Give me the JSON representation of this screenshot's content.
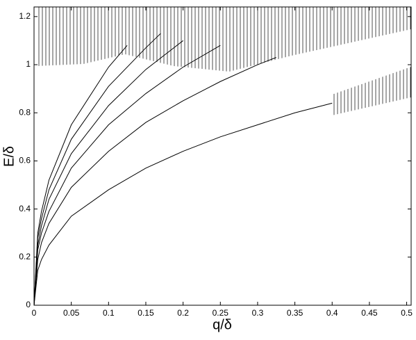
{
  "chart_data": {
    "type": "line",
    "xlabel": "q/δ",
    "ylabel": "E/δ",
    "xlim": [
      0,
      0.506
    ],
    "ylim": [
      0,
      1.24
    ],
    "xticks": [
      0,
      0.05,
      0.1,
      0.15,
      0.2,
      0.25,
      0.3,
      0.35,
      0.4,
      0.45,
      0.5
    ],
    "yticks": [
      0,
      0.2,
      0.4,
      0.6,
      0.8,
      1,
      1.2
    ],
    "color": "#000000",
    "series": [
      {
        "x": [
          0,
          0.005,
          0.01,
          0.02,
          0.05,
          0.1,
          0.15,
          0.2,
          0.25,
          0.3,
          0.35,
          0.4
        ],
        "values": [
          0,
          0.145,
          0.19,
          0.25,
          0.37,
          0.48,
          0.57,
          0.64,
          0.7,
          0.75,
          0.8,
          0.84
        ]
      },
      {
        "x": [
          0,
          0.005,
          0.01,
          0.02,
          0.05,
          0.1,
          0.15,
          0.2,
          0.25,
          0.3,
          0.325
        ],
        "values": [
          0,
          0.19,
          0.26,
          0.34,
          0.49,
          0.64,
          0.76,
          0.85,
          0.93,
          1.0,
          1.03
        ]
      },
      {
        "x": [
          0,
          0.005,
          0.01,
          0.02,
          0.05,
          0.1,
          0.15,
          0.2,
          0.25
        ],
        "values": [
          0,
          0.23,
          0.3,
          0.39,
          0.57,
          0.75,
          0.88,
          0.99,
          1.08
        ]
      },
      {
        "x": [
          0,
          0.005,
          0.01,
          0.02,
          0.05,
          0.1,
          0.15,
          0.2
        ],
        "values": [
          0,
          0.25,
          0.33,
          0.44,
          0.63,
          0.83,
          0.98,
          1.1
        ]
      },
      {
        "x": [
          0,
          0.005,
          0.01,
          0.02,
          0.05,
          0.1,
          0.15,
          0.17
        ],
        "values": [
          0,
          0.28,
          0.36,
          0.48,
          0.69,
          0.91,
          1.07,
          1.13
        ]
      },
      {
        "x": [
          0,
          0.005,
          0.01,
          0.02,
          0.05,
          0.1,
          0.125
        ],
        "values": [
          0,
          0.3,
          0.39,
          0.52,
          0.75,
          0.99,
          1.08
        ]
      }
    ]
  }
}
